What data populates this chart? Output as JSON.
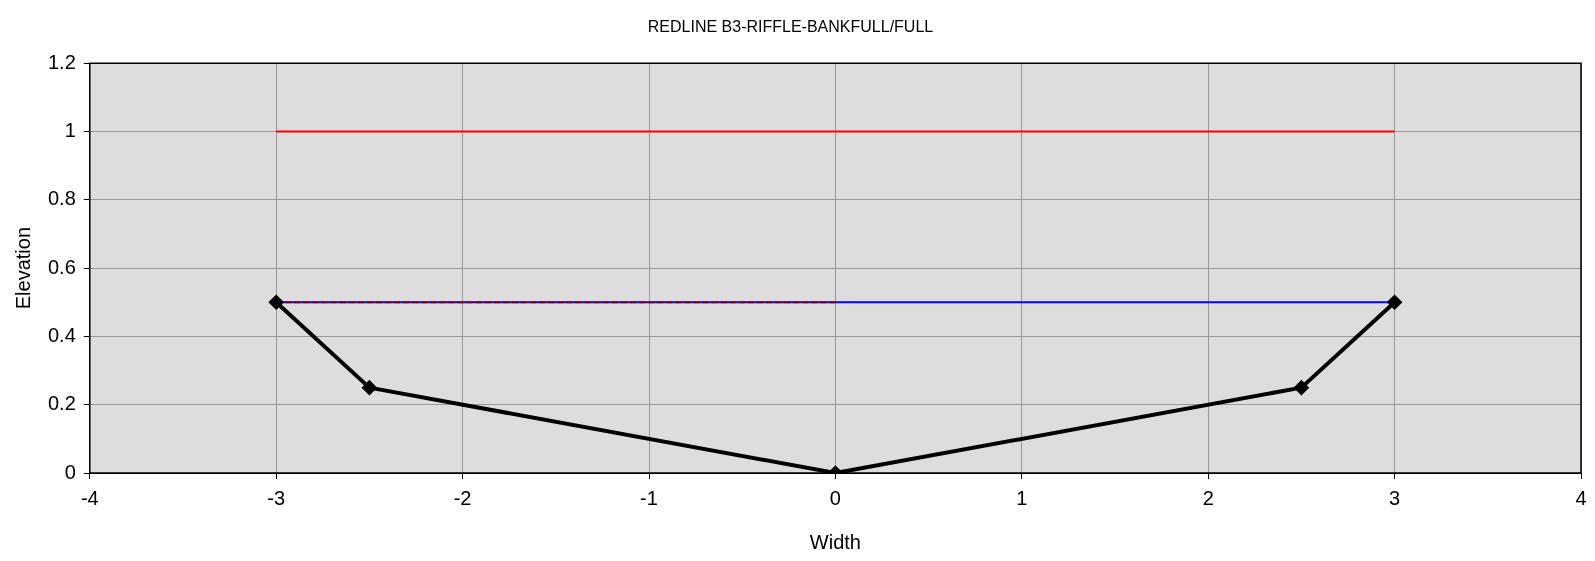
{
  "chart_data": {
    "type": "line",
    "title": "REDLINE B3-RIFFLE-BANKFULL/FULL",
    "xlabel": "Width",
    "ylabel": "Elevation",
    "xlim": [
      -4,
      4
    ],
    "xticks": [
      -4,
      -3,
      -2,
      -1,
      0,
      1,
      2,
      3,
      4
    ],
    "ylim": [
      0,
      1.2
    ],
    "yticks": [
      0,
      0.2,
      0.4,
      0.6,
      0.8,
      1,
      1.2
    ],
    "grid": true,
    "legend": false,
    "series": [
      {
        "x": [
          -3,
          3
        ],
        "values": [
          1,
          1
        ],
        "color": "#ff0000",
        "marker": "none",
        "line_style": "solid"
      },
      {
        "x": [
          -3,
          3
        ],
        "values": [
          0.5,
          0.5
        ],
        "color": "#0000ff",
        "marker": "none",
        "line_style": "solid"
      },
      {
        "x": [
          -3,
          0
        ],
        "values": [
          0.5,
          0.5
        ],
        "color": "#8b0000",
        "marker": "none",
        "line_style": "dashed"
      },
      {
        "x": [
          -3,
          -2.5,
          0,
          2.5,
          3
        ],
        "values": [
          0.5,
          0.25,
          0,
          0.25,
          0.5
        ],
        "color": "#000000",
        "marker": "diamond",
        "line_style": "solid"
      }
    ]
  }
}
